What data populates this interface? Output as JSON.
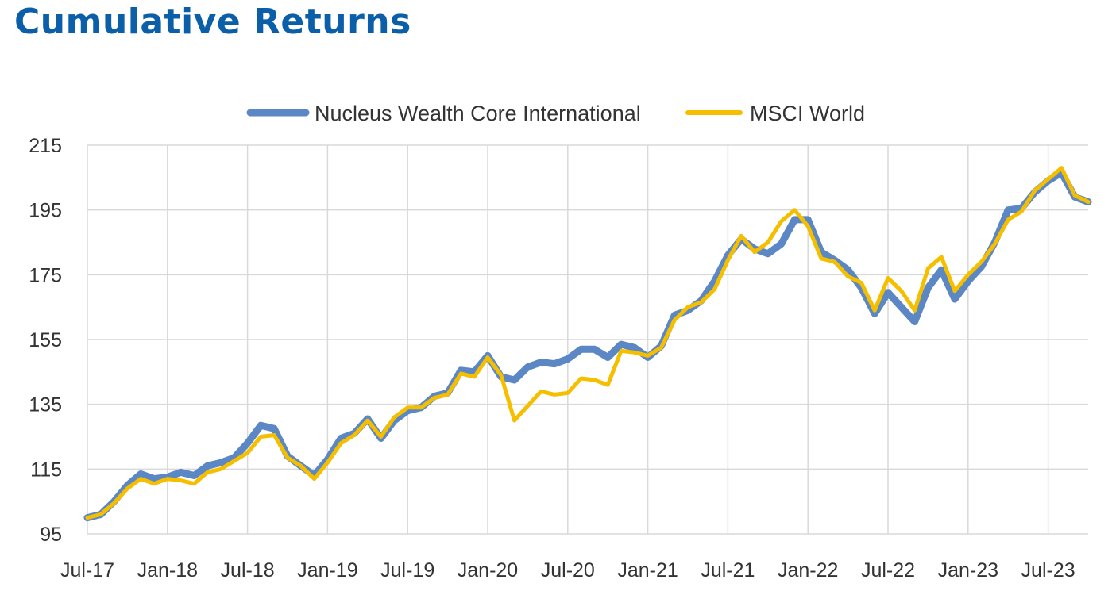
{
  "title": "Cumulative Returns",
  "chart_data": {
    "type": "line",
    "title": "Cumulative Returns",
    "xlabel": "",
    "ylabel": "",
    "ylim": [
      95,
      215
    ],
    "yticks": [
      95,
      115,
      135,
      155,
      175,
      195,
      215
    ],
    "xticks": [
      "Jul-17",
      "Jan-18",
      "Jul-18",
      "Jan-19",
      "Jul-19",
      "Jan-20",
      "Jul-20",
      "Jan-21",
      "Jul-21",
      "Jan-22",
      "Jul-22",
      "Jan-23",
      "Jul-23"
    ],
    "x": [
      "Jul-17",
      "Aug-17",
      "Sep-17",
      "Oct-17",
      "Nov-17",
      "Dec-17",
      "Jan-18",
      "Feb-18",
      "Mar-18",
      "Apr-18",
      "May-18",
      "Jun-18",
      "Jul-18",
      "Aug-18",
      "Sep-18",
      "Oct-18",
      "Nov-18",
      "Dec-18",
      "Jan-19",
      "Feb-19",
      "Mar-19",
      "Apr-19",
      "May-19",
      "Jun-19",
      "Jul-19",
      "Aug-19",
      "Sep-19",
      "Oct-19",
      "Nov-19",
      "Dec-19",
      "Jan-20",
      "Feb-20",
      "Mar-20",
      "Apr-20",
      "May-20",
      "Jun-20",
      "Jul-20",
      "Aug-20",
      "Sep-20",
      "Oct-20",
      "Nov-20",
      "Dec-20",
      "Jan-21",
      "Feb-21",
      "Mar-21",
      "Apr-21",
      "May-21",
      "Jun-21",
      "Jul-21",
      "Aug-21",
      "Sep-21",
      "Oct-21",
      "Nov-21",
      "Dec-21",
      "Jan-22",
      "Feb-22",
      "Mar-22",
      "Apr-22",
      "May-22",
      "Jun-22",
      "Jul-22",
      "Aug-22",
      "Sep-22",
      "Oct-22",
      "Nov-22",
      "Dec-22",
      "Jan-23",
      "Feb-23",
      "Mar-23",
      "Apr-23",
      "May-23",
      "Jun-23",
      "Jul-23",
      "Aug-23",
      "Sep-23",
      "Oct-23"
    ],
    "grid": true,
    "legend_position": "top",
    "series": [
      {
        "name": "Nucleus Wealth Core International",
        "color": "#5b87c5",
        "values": [
          100,
          101,
          105,
          110,
          113.5,
          112,
          112.5,
          114,
          113,
          116,
          117,
          118.5,
          123,
          128.5,
          127.5,
          119,
          116,
          113,
          118,
          124.5,
          126,
          130.5,
          124.5,
          130,
          133,
          134,
          137.5,
          138.5,
          145.5,
          145,
          150,
          143.5,
          142.5,
          146.5,
          148,
          147.5,
          149,
          152,
          152,
          149.5,
          153.5,
          152.5,
          149.5,
          153,
          162.5,
          164,
          167,
          173,
          181,
          186,
          183,
          181.5,
          184.5,
          192,
          192,
          182,
          179.5,
          176.5,
          171,
          163,
          169.5,
          165,
          160.5,
          171,
          176.5,
          167.5,
          173,
          177.5,
          185,
          195,
          195.5,
          200.5,
          204,
          206.5,
          199,
          197.5
        ]
      },
      {
        "name": "MSCI World",
        "color": "#f5bf00",
        "values": [
          100,
          101,
          104.5,
          109,
          112,
          110.5,
          112,
          111.5,
          110.5,
          114,
          115,
          117.5,
          120,
          125,
          125.5,
          118.5,
          116,
          112,
          117,
          123,
          125.5,
          130,
          125,
          131,
          134,
          134,
          137,
          138,
          144.5,
          143.5,
          149.5,
          144,
          130,
          134.5,
          139,
          138,
          138.5,
          143,
          142.5,
          141,
          151.5,
          151,
          150,
          152.5,
          161,
          165,
          166.5,
          170.5,
          179.5,
          187,
          182,
          185,
          191.5,
          195,
          190,
          180,
          179,
          174.5,
          172.5,
          164,
          174,
          170,
          164,
          177,
          180.5,
          170,
          175,
          179,
          184.5,
          192,
          194.5,
          201,
          204.5,
          208,
          199.5,
          197.5
        ]
      }
    ]
  }
}
